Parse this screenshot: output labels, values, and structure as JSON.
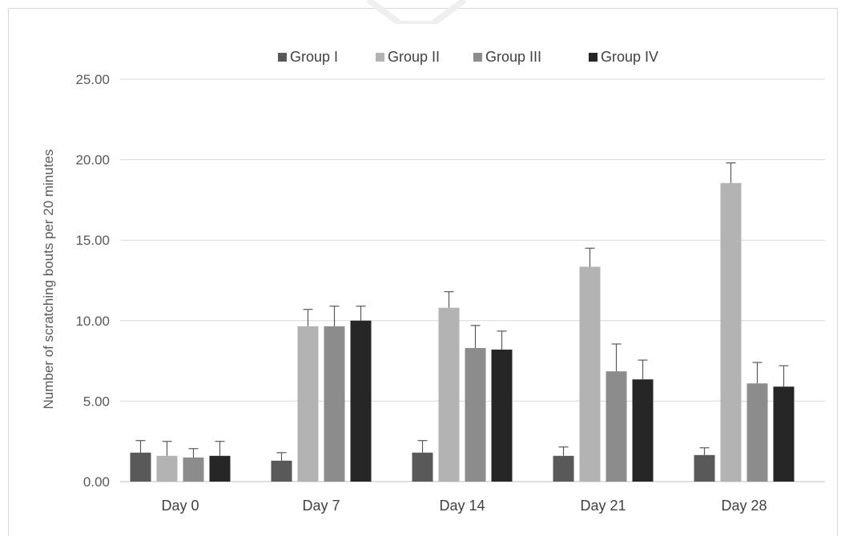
{
  "chart_data": {
    "type": "bar",
    "categories": [
      "Day 0",
      "Day 7",
      "Day 14",
      "Day 21",
      "Day 28"
    ],
    "series": [
      {
        "name": "Group I",
        "color": "#595959",
        "values": [
          1.8,
          1.3,
          1.8,
          1.6,
          1.65
        ],
        "errors": [
          0.75,
          0.5,
          0.75,
          0.55,
          0.45
        ]
      },
      {
        "name": "Group II",
        "color": "#b3b3b3",
        "values": [
          1.6,
          9.65,
          10.8,
          13.35,
          18.55
        ],
        "errors": [
          0.9,
          1.05,
          1.0,
          1.15,
          1.25
        ]
      },
      {
        "name": "Group III",
        "color": "#8c8c8c",
        "values": [
          1.5,
          9.65,
          8.3,
          6.85,
          6.1
        ],
        "errors": [
          0.55,
          1.25,
          1.4,
          1.7,
          1.3
        ]
      },
      {
        "name": "Group IV",
        "color": "#262626",
        "values": [
          1.6,
          10.0,
          8.2,
          6.35,
          5.9
        ],
        "errors": [
          0.9,
          0.9,
          1.15,
          1.2,
          1.3
        ]
      }
    ],
    "title": "",
    "xlabel": "",
    "ylabel": "Number of scratching bouts per 20 minutes",
    "ylim": [
      0,
      25
    ],
    "yticks": [
      "0.00",
      "5.00",
      "10.00",
      "15.00",
      "20.00",
      "25.00"
    ],
    "ytick_values": [
      0,
      5,
      10,
      15,
      20,
      25
    ],
    "grid": true,
    "legend": "top-center",
    "error_bars": "positive"
  }
}
